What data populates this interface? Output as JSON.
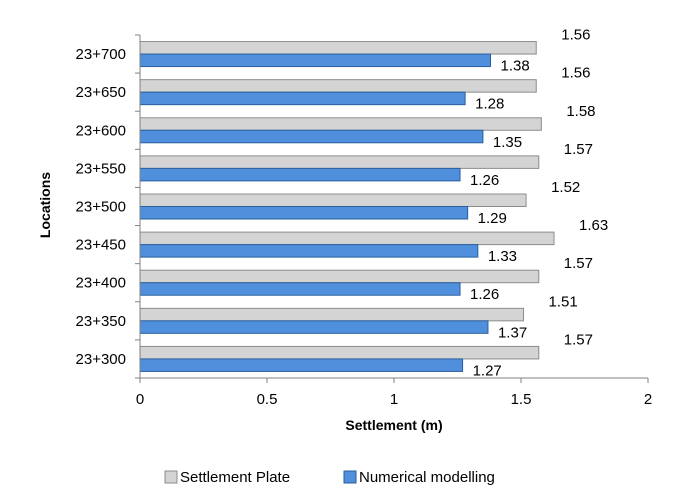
{
  "chart_data": {
    "type": "bar",
    "orientation": "horizontal",
    "categories": [
      "23+700",
      "23+650",
      "23+600",
      "23+550",
      "23+500",
      "23+450",
      "23+400",
      "23+350",
      "23+300"
    ],
    "series": [
      {
        "name": "Settlement Plate",
        "values": [
          1.56,
          1.56,
          1.58,
          1.57,
          1.52,
          1.63,
          1.57,
          1.51,
          1.57
        ],
        "color": "#d4d4d4",
        "stroke": "#8c8c8c"
      },
      {
        "name": "Numerical modelling",
        "values": [
          1.38,
          1.28,
          1.35,
          1.26,
          1.29,
          1.33,
          1.26,
          1.37,
          1.27
        ],
        "color": "#4f8fdb",
        "stroke": "#2a5f9e"
      }
    ],
    "data_labels": {
      "series_0": [
        "1.56",
        "1.56",
        "1.58",
        "1.57",
        "1.52",
        "1.63",
        "1.57",
        "1.51",
        "1.57"
      ],
      "series_1": [
        "1.38",
        "1.28",
        "1.35",
        "1.26",
        "1.29",
        "1.33",
        "1.26",
        "1.37",
        "1.27"
      ]
    },
    "xlabel": "Settlement (m)",
    "ylabel": "Locations",
    "xlim": [
      0,
      2
    ],
    "xticks": [
      "0",
      "0.5",
      "1",
      "1.5",
      "2"
    ],
    "grid": false,
    "legend_position": "bottom"
  }
}
